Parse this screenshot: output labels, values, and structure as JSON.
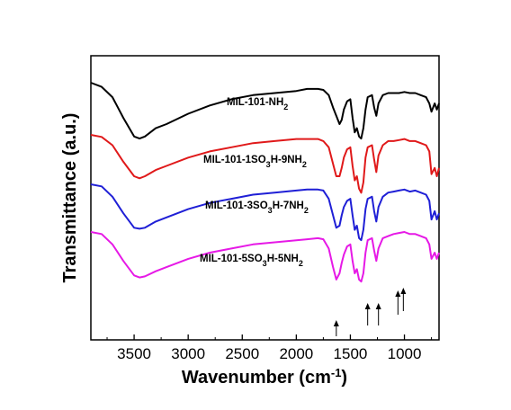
{
  "chart_data": {
    "type": "line",
    "xlabel": "Wavenumber (cm",
    "xlabel_sup": "-1",
    "xlabel_tail": ")",
    "ylabel": "Transmittance (a.u.)",
    "xlim": [
      3900,
      680
    ],
    "x_reversed": true,
    "y_ticks_labeled": false,
    "x_ticks": [
      3500,
      3000,
      2500,
      2000,
      1500,
      1000
    ],
    "x_tick_labels": [
      "3500",
      "3000",
      "2500",
      "2000",
      "1500",
      "1000"
    ],
    "grid": false,
    "legend": "none",
    "series": [
      {
        "name": "MIL-101-NH2",
        "label_parts": [
          "MIL-101-NH",
          "2",
          ""
        ],
        "color": "#000000",
        "x": [
          3900,
          3800,
          3700,
          3600,
          3500,
          3450,
          3400,
          3300,
          3200,
          3000,
          2800,
          2600,
          2400,
          2200,
          2000,
          1900,
          1800,
          1750,
          1700,
          1660,
          1630,
          1600,
          1580,
          1560,
          1530,
          1500,
          1480,
          1460,
          1440,
          1420,
          1400,
          1380,
          1360,
          1340,
          1300,
          1280,
          1260,
          1240,
          1200,
          1150,
          1100,
          1050,
          1000,
          950,
          900,
          850,
          800,
          770,
          750,
          720,
          700,
          680
        ],
        "y": [
          60,
          58,
          53,
          43,
          34,
          33,
          34,
          38,
          40,
          45,
          49,
          52,
          54,
          55,
          56,
          57,
          57,
          56.5,
          54,
          48,
          44,
          40,
          42,
          47,
          51,
          52,
          43,
          36,
          38,
          34,
          33,
          38,
          47,
          53,
          54,
          48,
          44,
          50,
          54,
          55,
          55,
          55,
          55.5,
          55,
          55,
          54,
          53,
          50,
          46,
          50,
          47,
          50
        ]
      },
      {
        "name": "MIL-101-1SO3H-9NH2",
        "label_parts": [
          "MIL-101-1SO",
          "3",
          "H-9NH",
          "2"
        ],
        "color": "#e0191a",
        "x": [
          3900,
          3800,
          3700,
          3600,
          3500,
          3450,
          3400,
          3300,
          3200,
          3000,
          2800,
          2600,
          2400,
          2200,
          2000,
          1900,
          1800,
          1750,
          1700,
          1660,
          1630,
          1600,
          1580,
          1560,
          1530,
          1500,
          1480,
          1460,
          1440,
          1420,
          1400,
          1380,
          1360,
          1340,
          1300,
          1280,
          1260,
          1240,
          1200,
          1150,
          1100,
          1050,
          1000,
          950,
          900,
          850,
          800,
          770,
          750,
          720,
          700,
          680
        ],
        "y": [
          60,
          59,
          55,
          47,
          40,
          39,
          40,
          43,
          45,
          49,
          52,
          54,
          56,
          57,
          58,
          58,
          58,
          57,
          54,
          46,
          40,
          40,
          44,
          49,
          53,
          54,
          45,
          38,
          40,
          34,
          32,
          37,
          49,
          54,
          55,
          48,
          42,
          50,
          55,
          57,
          57,
          57.5,
          58,
          57,
          57,
          56,
          55,
          52,
          41,
          44,
          40,
          44
        ]
      },
      {
        "name": "MIL-101-3SO3H-7NH2",
        "label_parts": [
          "MIL-101-3SO",
          "3",
          "H-7NH",
          "2"
        ],
        "color": "#1f1fd6",
        "x": [
          3900,
          3800,
          3700,
          3600,
          3500,
          3450,
          3400,
          3300,
          3200,
          3000,
          2800,
          2600,
          2400,
          2200,
          2000,
          1900,
          1800,
          1750,
          1700,
          1660,
          1630,
          1600,
          1580,
          1560,
          1530,
          1500,
          1480,
          1460,
          1440,
          1420,
          1400,
          1380,
          1360,
          1340,
          1300,
          1280,
          1260,
          1240,
          1200,
          1150,
          1100,
          1050,
          1000,
          950,
          900,
          850,
          800,
          770,
          750,
          720,
          700,
          680
        ],
        "y": [
          60,
          59,
          54,
          46,
          39,
          38.5,
          39,
          42,
          44,
          48,
          51,
          53,
          55,
          56,
          57,
          57.5,
          57.5,
          57,
          53,
          45,
          39,
          40,
          45,
          49,
          52,
          53,
          45,
          38,
          40,
          34,
          33,
          38,
          48,
          53,
          54,
          47,
          42,
          49,
          54,
          56,
          56.5,
          57,
          57.5,
          56.5,
          57,
          56,
          55,
          52,
          43,
          47,
          43,
          46
        ]
      },
      {
        "name": "MIL-101-5SO3H-5NH2",
        "label_parts": [
          "MIL-101-5SO",
          "3",
          "H-5NH",
          "2"
        ],
        "color": "#e619e6",
        "x": [
          3900,
          3800,
          3700,
          3600,
          3500,
          3450,
          3400,
          3300,
          3200,
          3000,
          2800,
          2600,
          2400,
          2200,
          2000,
          1900,
          1800,
          1750,
          1700,
          1660,
          1630,
          1600,
          1580,
          1560,
          1530,
          1500,
          1480,
          1460,
          1440,
          1420,
          1400,
          1380,
          1360,
          1340,
          1300,
          1280,
          1260,
          1240,
          1200,
          1150,
          1100,
          1050,
          1000,
          950,
          900,
          850,
          800,
          770,
          750,
          720,
          700,
          680
        ],
        "y": [
          60,
          59,
          54,
          46,
          39,
          38,
          38.5,
          41,
          43,
          47,
          50,
          52,
          54,
          55,
          56,
          56.5,
          57,
          56.5,
          52,
          43,
          37,
          40,
          45,
          49,
          53,
          54,
          46,
          40,
          42,
          37,
          36,
          40,
          50,
          56,
          57,
          51,
          46,
          52,
          57,
          58,
          59,
          59.5,
          60,
          59,
          59,
          58,
          57,
          54,
          47,
          50,
          47,
          50
        ]
      }
    ],
    "arrows_x": [
      1630,
      1340,
      1240,
      1060,
      1010
    ]
  }
}
